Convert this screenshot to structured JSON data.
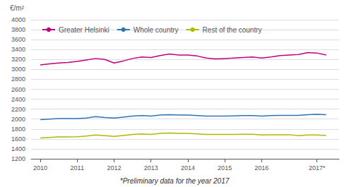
{
  "chart_data": {
    "type": "line",
    "ylabel": "€/m²",
    "annotations": [
      "*Preliminary data for the year 2017"
    ],
    "x": [
      2010.0,
      2010.25,
      2010.5,
      2010.75,
      2011.0,
      2011.25,
      2011.5,
      2011.75,
      2012.0,
      2012.25,
      2012.5,
      2012.75,
      2013.0,
      2013.25,
      2013.5,
      2013.75,
      2014.0,
      2014.25,
      2014.5,
      2014.75,
      2015.0,
      2015.25,
      2015.5,
      2015.75,
      2016.0,
      2016.25,
      2016.5,
      2016.75,
      2017.0,
      2017.25,
      2017.5,
      2017.75
    ],
    "series": [
      {
        "name": "Greater Helsinki",
        "color": "#c0007a",
        "values": [
          3090,
          3110,
          3130,
          3140,
          3160,
          3190,
          3220,
          3200,
          3130,
          3170,
          3220,
          3250,
          3240,
          3280,
          3310,
          3290,
          3290,
          3270,
          3230,
          3210,
          3220,
          3230,
          3240,
          3250,
          3230,
          3250,
          3280,
          3290,
          3300,
          3340,
          3330,
          3290
        ]
      },
      {
        "name": "Whole country",
        "color": "#2e75b6",
        "values": [
          1990,
          2000,
          2010,
          2010,
          2010,
          2020,
          2050,
          2030,
          2020,
          2040,
          2060,
          2070,
          2060,
          2080,
          2090,
          2080,
          2080,
          2070,
          2060,
          2060,
          2060,
          2065,
          2070,
          2070,
          2060,
          2070,
          2075,
          2075,
          2075,
          2090,
          2095,
          2090
        ]
      },
      {
        "name": "Rest of the country",
        "color": "#b0b800",
        "values": [
          1620,
          1630,
          1640,
          1640,
          1645,
          1660,
          1680,
          1665,
          1650,
          1670,
          1690,
          1700,
          1690,
          1710,
          1720,
          1710,
          1710,
          1700,
          1690,
          1690,
          1690,
          1690,
          1695,
          1695,
          1680,
          1685,
          1685,
          1685,
          1665,
          1680,
          1680,
          1670
        ]
      }
    ],
    "xlim": [
      2009.75,
      2018.1
    ],
    "xticks": [
      2010,
      2011,
      2012,
      2013,
      2014,
      2015,
      2016,
      {
        "value": 2017.5,
        "label": "2017*"
      }
    ],
    "ylim": [
      1200,
      4000
    ],
    "yticks": [
      1200,
      1400,
      1600,
      1800,
      2000,
      2200,
      2400,
      2600,
      2800,
      3000,
      3200,
      3400,
      3600,
      3800,
      4000
    ],
    "grid": true,
    "legend": "upper left"
  }
}
